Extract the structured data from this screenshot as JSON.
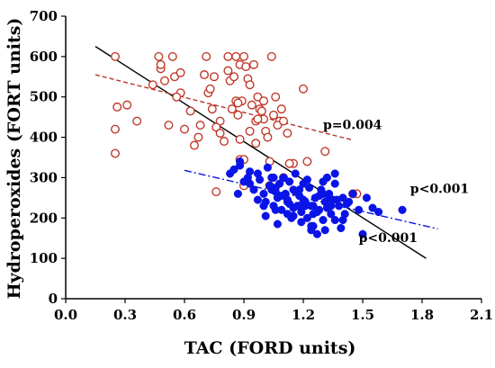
{
  "chart_data": {
    "type": "scatter",
    "title": "",
    "xlabel": "TAC (FORD units)",
    "ylabel": "Hydroperoxides (FORT units)",
    "xlim": [
      0.0,
      2.1
    ],
    "ylim": [
      0,
      700
    ],
    "xticks": [
      "0.0",
      "0.3",
      "0.6",
      "0.9",
      "1.2",
      "1.5",
      "1.8",
      "2.1"
    ],
    "yticks": [
      "0",
      "100",
      "200",
      "300",
      "400",
      "500",
      "600",
      "700"
    ],
    "grid": false,
    "legend": "none",
    "series": [
      {
        "marker": "open-circle",
        "color": "#c0392b",
        "x": [
          0.25,
          0.26,
          0.25,
          0.25,
          0.31,
          0.36,
          0.44,
          0.47,
          0.48,
          0.48,
          0.52,
          0.54,
          0.55,
          0.58,
          0.6,
          0.63,
          0.67,
          0.68,
          0.7,
          0.71,
          0.72,
          0.73,
          0.75,
          0.76,
          0.78,
          0.8,
          0.82,
          0.83,
          0.84,
          0.85,
          0.86,
          0.87,
          0.88,
          0.88,
          0.89,
          0.9,
          0.9,
          0.91,
          0.92,
          0.93,
          0.94,
          0.95,
          0.96,
          0.97,
          0.98,
          0.99,
          1.0,
          1.01,
          1.02,
          1.03,
          1.04,
          1.05,
          1.06,
          1.08,
          1.09,
          1.1,
          1.12,
          1.15,
          1.2,
          1.22,
          1.31,
          1.47,
          0.76,
          0.86,
          0.9,
          1.03,
          1.13,
          1.45,
          0.5,
          0.56,
          0.65,
          0.78,
          0.82,
          0.87,
          0.93,
          0.96,
          1.0,
          1.07,
          0.58,
          0.74,
          0.88,
          0.97,
          1.1
        ],
        "y": [
          600,
          475,
          420,
          360,
          480,
          440,
          530,
          600,
          570,
          580,
          430,
          600,
          550,
          510,
          420,
          465,
          400,
          430,
          555,
          600,
          510,
          520,
          550,
          265,
          440,
          390,
          600,
          540,
          470,
          550,
          600,
          455,
          580,
          345,
          490,
          600,
          280,
          575,
          545,
          415,
          480,
          580,
          440,
          500,
          470,
          465,
          490,
          415,
          400,
          280,
          600,
          455,
          500,
          440,
          470,
          300,
          410,
          335,
          520,
          340,
          365,
          260,
          425,
          490,
          345,
          340,
          335,
          260,
          540,
          500,
          380,
          410,
          565,
          485,
          530,
          385,
          445,
          430,
          560,
          470,
          395,
          445,
          440
        ]
      },
      {
        "marker": "filled-circle",
        "color": "#0a14e6",
        "x": [
          0.83,
          0.85,
          0.87,
          0.88,
          0.9,
          0.92,
          0.93,
          0.95,
          0.97,
          0.98,
          1.0,
          1.01,
          1.02,
          1.03,
          1.04,
          1.05,
          1.06,
          1.07,
          1.08,
          1.09,
          1.1,
          1.11,
          1.12,
          1.13,
          1.14,
          1.15,
          1.16,
          1.17,
          1.18,
          1.19,
          1.2,
          1.21,
          1.22,
          1.23,
          1.24,
          1.25,
          1.26,
          1.27,
          1.28,
          1.29,
          1.3,
          1.31,
          1.32,
          1.33,
          1.34,
          1.35,
          1.36,
          1.38,
          1.39,
          1.4,
          1.41,
          1.43,
          1.45,
          1.48,
          1.5,
          1.52,
          1.55,
          1.58,
          1.7,
          0.88,
          0.93,
          0.97,
          1.01,
          1.04,
          1.07,
          1.1,
          1.13,
          1.16,
          1.19,
          1.22,
          1.25,
          1.28,
          1.31,
          1.34,
          1.37,
          1.4,
          1.03,
          1.06,
          1.09,
          1.12,
          1.15,
          1.18,
          1.21,
          1.24,
          1.27,
          1.3,
          1.33,
          1.36,
          1.42,
          1.0,
          1.06,
          1.12,
          1.18,
          1.24,
          1.3,
          1.36,
          1.05,
          1.15,
          1.2,
          1.25,
          1.32
        ],
        "y": [
          310,
          320,
          260,
          330,
          290,
          300,
          285,
          270,
          310,
          295,
          260,
          240,
          325,
          280,
          300,
          230,
          275,
          250,
          285,
          220,
          300,
          260,
          245,
          290,
          200,
          270,
          310,
          230,
          255,
          215,
          285,
          240,
          200,
          275,
          230,
          180,
          250,
          160,
          220,
          270,
          195,
          240,
          225,
          260,
          210,
          245,
          310,
          230,
          175,
          250,
          210,
          240,
          260,
          220,
          160,
          250,
          225,
          215,
          220,
          340,
          315,
          245,
          205,
          270,
          185,
          300,
          235,
          265,
          190,
          295,
          210,
          255,
          170,
          230,
          245,
          195,
          280,
          220,
          255,
          240,
          205,
          270,
          230,
          180,
          215,
          290,
          250,
          285,
          235,
          230,
          265,
          210,
          230,
          170,
          260,
          195,
          300,
          225,
          245,
          230,
          300
        ]
      }
    ],
    "lines": [
      {
        "name": "overall-fit",
        "style": "solid",
        "color": "#000000",
        "x": [
          0.15,
          1.82
        ],
        "y": [
          625,
          100
        ]
      },
      {
        "name": "red-fit",
        "style": "dashed",
        "color": "#b5342a",
        "x": [
          0.15,
          1.45
        ],
        "y": [
          555,
          393
        ]
      },
      {
        "name": "blue-fit",
        "style": "dash-dot",
        "color": "#0a14e6",
        "x": [
          0.6,
          1.88
        ],
        "y": [
          318,
          173
        ]
      }
    ],
    "annotations": [
      {
        "text": "p=0.004",
        "x": 1.3,
        "y": 420
      },
      {
        "text": "p<0.001",
        "x": 1.74,
        "y": 262
      },
      {
        "text": "p<0.001",
        "x": 1.48,
        "y": 140
      }
    ]
  }
}
